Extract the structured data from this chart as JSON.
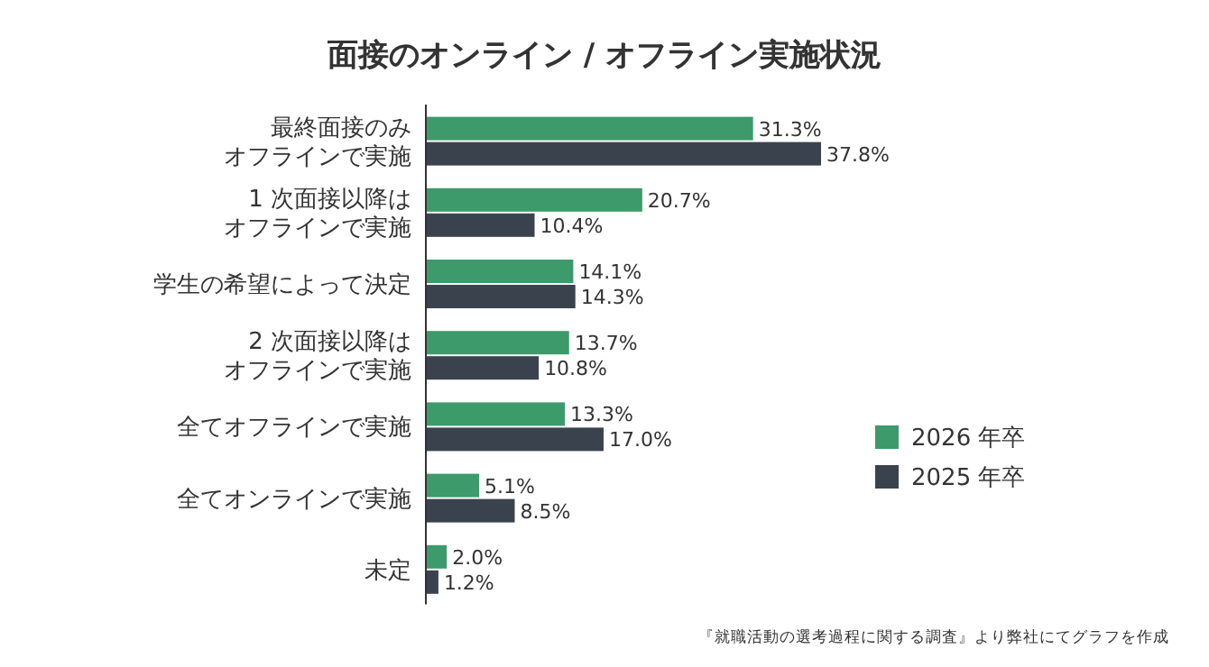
{
  "chart_data": {
    "type": "bar",
    "orientation": "horizontal",
    "title": "面接のオンライン / オフライン実施状況",
    "categories": [
      "最終面接のみオフラインで実施",
      "1 次面接以降はオフラインで実施",
      "学生の希望によって決定",
      "2 次面接以降はオフラインで実施",
      "全てオフラインで実施",
      "全てオンラインで実施",
      "未定"
    ],
    "series": [
      {
        "name": "2026 年卒",
        "color": "#3d9a6b",
        "values": [
          31.3,
          20.7,
          14.1,
          13.7,
          13.3,
          5.1,
          2.0
        ],
        "value_labels": [
          "31.3%",
          "20.7%",
          "14.1%",
          "13.7%",
          "13.3%",
          "5.1%",
          "2.0%"
        ]
      },
      {
        "name": "2025 年卒",
        "color": "#3a434d",
        "values": [
          37.8,
          10.4,
          14.3,
          10.8,
          17.0,
          8.5,
          1.2
        ],
        "value_labels": [
          "37.8%",
          "10.4%",
          "14.3%",
          "10.8%",
          "17.0%",
          "8.5%",
          "1.2%"
        ]
      }
    ],
    "legend": "right",
    "annotations": [
      "『就職活動の選考過程に関する調査』より弊社にてグラフを作成"
    ]
  }
}
